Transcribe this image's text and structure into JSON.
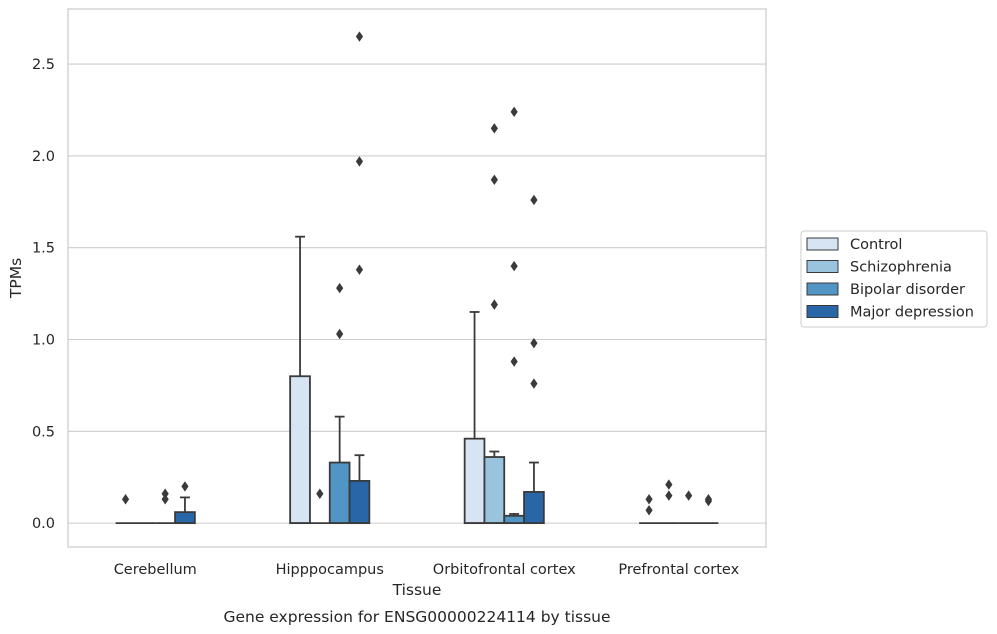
{
  "chart_data": {
    "type": "box",
    "title": "Gene expression for ENSG00000224114 by tissue",
    "xlabel": "Tissue",
    "ylabel": "TPMs",
    "ylim": [
      -0.13,
      2.8
    ],
    "yticks": [
      "0.0",
      "0.5",
      "1.0",
      "1.5",
      "2.0",
      "2.5"
    ],
    "grid": true,
    "legend_position": "right",
    "categories": [
      "Cerebellum",
      "Hipppocampus",
      "Orbitofrontal cortex",
      "Prefrontal cortex"
    ],
    "series": [
      {
        "name": "Control",
        "color": "#d6e4f3",
        "boxes": [
          {
            "whisker_low": 0,
            "q1": 0,
            "median": 0,
            "q3": 0,
            "whisker_high": 0,
            "outliers": [
              0.13
            ]
          },
          {
            "whisker_low": 0,
            "q1": 0,
            "median": 0,
            "q3": 0.8,
            "whisker_high": 1.56,
            "outliers": []
          },
          {
            "whisker_low": 0,
            "q1": 0,
            "median": 0,
            "q3": 0.46,
            "whisker_high": 1.15,
            "outliers": []
          },
          {
            "whisker_low": 0,
            "q1": 0,
            "median": 0,
            "q3": 0,
            "whisker_high": 0,
            "outliers": [
              0.07,
              0.13
            ]
          }
        ]
      },
      {
        "name": "Schizophrenia",
        "color": "#9ac4de",
        "boxes": [
          {
            "whisker_low": 0,
            "q1": 0,
            "median": 0,
            "q3": 0,
            "whisker_high": 0,
            "outliers": []
          },
          {
            "whisker_low": 0,
            "q1": 0,
            "median": 0,
            "q3": 0,
            "whisker_high": 0,
            "outliers": [
              0.16
            ]
          },
          {
            "whisker_low": 0,
            "q1": 0,
            "median": 0,
            "q3": 0.36,
            "whisker_high": 0.39,
            "outliers": [
              1.19,
              1.87,
              2.15
            ]
          },
          {
            "whisker_low": 0,
            "q1": 0,
            "median": 0,
            "q3": 0,
            "whisker_high": 0,
            "outliers": [
              0.15,
              0.21
            ]
          }
        ]
      },
      {
        "name": "Bipolar disorder",
        "color": "#5095c4",
        "boxes": [
          {
            "whisker_low": 0,
            "q1": 0,
            "median": 0,
            "q3": 0,
            "whisker_high": 0,
            "outliers": [
              0.13,
              0.16
            ]
          },
          {
            "whisker_low": 0,
            "q1": 0,
            "median": 0,
            "q3": 0.33,
            "whisker_high": 0.58,
            "outliers": [
              1.03,
              1.28
            ]
          },
          {
            "whisker_low": 0,
            "q1": 0,
            "median": 0,
            "q3": 0.04,
            "whisker_high": 0.05,
            "outliers": [
              0.88,
              1.4,
              2.24
            ]
          },
          {
            "whisker_low": 0,
            "q1": 0,
            "median": 0,
            "q3": 0,
            "whisker_high": 0,
            "outliers": [
              0.15
            ]
          }
        ]
      },
      {
        "name": "Major depression",
        "color": "#2866a7",
        "boxes": [
          {
            "whisker_low": 0,
            "q1": 0,
            "median": 0,
            "q3": 0.06,
            "whisker_high": 0.14,
            "outliers": [
              0.2
            ]
          },
          {
            "whisker_low": 0,
            "q1": 0,
            "median": 0,
            "q3": 0.23,
            "whisker_high": 0.37,
            "outliers": [
              1.38,
              1.97,
              2.65
            ]
          },
          {
            "whisker_low": 0,
            "q1": 0,
            "median": 0,
            "q3": 0.17,
            "whisker_high": 0.33,
            "outliers": [
              0.76,
              0.98,
              1.76
            ]
          },
          {
            "whisker_low": 0,
            "q1": 0,
            "median": 0,
            "q3": 0,
            "whisker_high": 0,
            "outliers": [
              0.12,
              0.13
            ]
          }
        ]
      }
    ]
  }
}
